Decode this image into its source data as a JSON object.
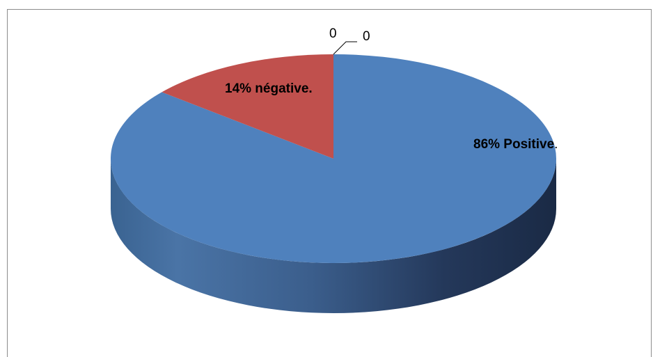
{
  "chart_data": {
    "type": "pie",
    "style": "3d",
    "series": [
      {
        "name": "",
        "values": [
          86,
          14,
          0,
          0
        ]
      }
    ],
    "slices": [
      {
        "label_main": "86% Positive",
        "label_suffix": ".",
        "value": 86,
        "color": "#4F81BD"
      },
      {
        "label_main": "14% négative.",
        "label_suffix": "",
        "value": 14,
        "color": "#C0504D"
      },
      {
        "label_main": "0",
        "label_suffix": "",
        "value": 0,
        "color": "#9BBB59"
      },
      {
        "label_main": "0",
        "label_suffix": "",
        "value": 0,
        "color": "#8064A2"
      }
    ],
    "legend": "none"
  }
}
